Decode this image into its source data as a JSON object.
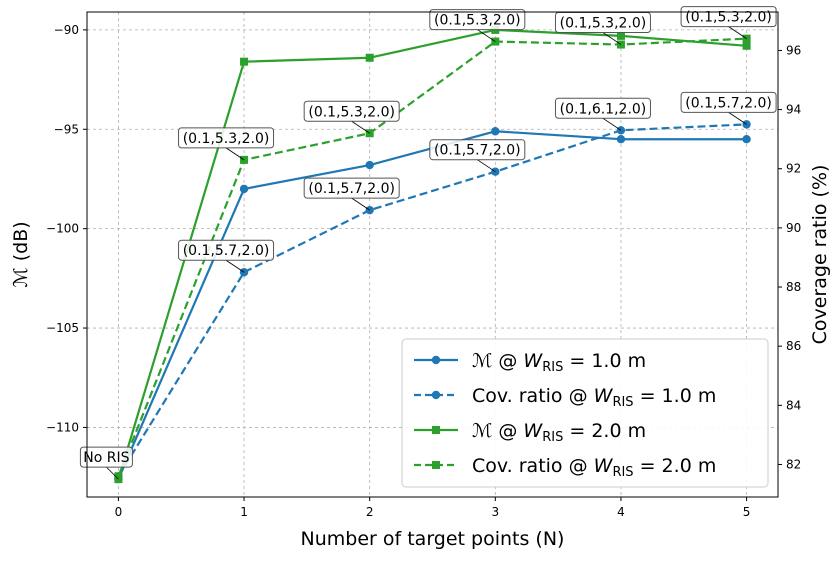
{
  "chart_data": {
    "type": "line",
    "xlabel": "Number of target points (N)",
    "ylabel_left": "ℳ (dB)",
    "ylabel_right": "Coverage ratio (%)",
    "x": [
      0,
      1,
      2,
      3,
      4,
      5
    ],
    "x_ticks": [
      "0",
      "1",
      "2",
      "3",
      "4",
      "5"
    ],
    "xlim": [
      -0.25,
      5.25
    ],
    "ylim_left": [
      -113.5,
      -89.1
    ],
    "ylim_right": [
      80.9,
      97.3
    ],
    "yticks_left": [
      -110,
      -105,
      -100,
      -95,
      -90
    ],
    "yticks_left_labels": [
      "−110",
      "−105",
      "−100",
      "−95",
      "−90"
    ],
    "yticks_right": [
      82,
      84,
      86,
      88,
      90,
      92,
      94,
      96
    ],
    "yticks_right_labels": [
      "82",
      "84",
      "86",
      "88",
      "90",
      "92",
      "94",
      "96"
    ],
    "grid": true,
    "legend_position": "bottom-right",
    "series": [
      {
        "name": "ℳ @ W_RIS = 1.0 m",
        "axis": "left",
        "color": "#1f77b4",
        "dash": "solid",
        "marker": "circle",
        "values": [
          -112.6,
          -98.0,
          -96.8,
          -95.1,
          -95.5,
          -95.5
        ]
      },
      {
        "name": "Cov. ratio @ W_RIS = 1.0 m",
        "axis": "right",
        "color": "#1f77b4",
        "dash": "dashed",
        "marker": "circle",
        "values": [
          81.6,
          88.5,
          90.6,
          91.9,
          93.3,
          93.5
        ]
      },
      {
        "name": "ℳ @ W_RIS = 2.0 m",
        "axis": "left",
        "color": "#2ca02c",
        "dash": "solid",
        "marker": "square",
        "values": [
          -112.6,
          -91.6,
          -91.4,
          -90.0,
          -90.3,
          -90.8
        ]
      },
      {
        "name": "Cov. ratio @ W_RIS = 2.0 m",
        "axis": "right",
        "color": "#2ca02c",
        "dash": "dashed",
        "marker": "square",
        "values": [
          81.6,
          92.3,
          93.2,
          96.3,
          96.2,
          96.4
        ]
      }
    ],
    "legend": [
      {
        "prefix": "ℳ @ ",
        "sub": "RIS",
        "value": " = 1.0 m",
        "color": "#1f77b4",
        "dash": "solid",
        "marker": "circle"
      },
      {
        "prefix": "Cov. ratio @ ",
        "sub": "RIS",
        "value": " = 1.0 m",
        "color": "#1f77b4",
        "dash": "dashed",
        "marker": "circle"
      },
      {
        "prefix": "ℳ @ ",
        "sub": "RIS",
        "value": " = 2.0 m",
        "color": "#2ca02c",
        "dash": "solid",
        "marker": "square"
      },
      {
        "prefix": "Cov. ratio @ ",
        "sub": "RIS",
        "value": " = 2.0 m",
        "color": "#2ca02c",
        "dash": "dashed",
        "marker": "square"
      }
    ],
    "annotations": [
      {
        "text": "No RIS",
        "x": 0,
        "axis": "left",
        "y": -112.6
      },
      {
        "text": "(0.1,5.7,2.0)",
        "x": 1,
        "axis": "right",
        "y": 88.5
      },
      {
        "text": "(0.1,5.3,2.0)",
        "x": 1,
        "axis": "right",
        "y": 92.3
      },
      {
        "text": "(0.1,5.7,2.0)",
        "x": 2,
        "axis": "right",
        "y": 90.6
      },
      {
        "text": "(0.1,5.3,2.0)",
        "x": 2,
        "axis": "right",
        "y": 93.2
      },
      {
        "text": "(0.1,5.7,2.0)",
        "x": 3,
        "axis": "right",
        "y": 91.9
      },
      {
        "text": "(0.1,5.3,2.0)",
        "x": 3,
        "axis": "right",
        "y": 96.3
      },
      {
        "text": "(0.1,6.1,2.0)",
        "x": 4,
        "axis": "right",
        "y": 93.3
      },
      {
        "text": "(0.1,5.3,2.0)",
        "x": 4,
        "axis": "right",
        "y": 96.2
      },
      {
        "text": "(0.1,5.7,2.0)",
        "x": 5,
        "axis": "right",
        "y": 93.5
      },
      {
        "text": "(0.1,5.3,2.0)",
        "x": 5,
        "axis": "right",
        "y": 96.4
      }
    ]
  }
}
